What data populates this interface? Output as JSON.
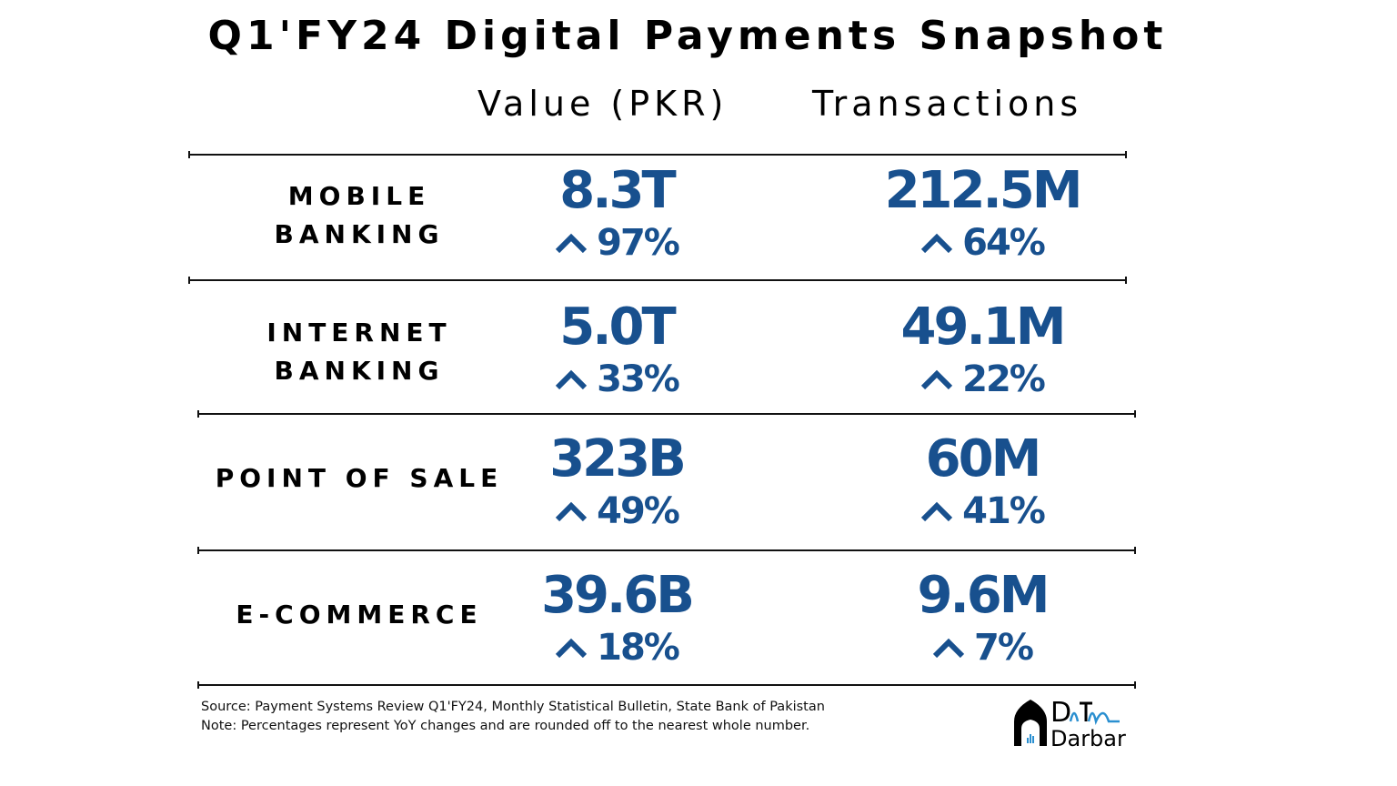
{
  "title": "Q1'FY24 Digital Payments Snapshot",
  "columns": {
    "value": "Value (PKR)",
    "transactions": "Transactions"
  },
  "rows": [
    {
      "label_line1": "MOBILE",
      "label_line2": "BANKING",
      "value": "8.3T",
      "value_change": "97%",
      "transactions": "212.5M",
      "transactions_change": "64%"
    },
    {
      "label_line1": "INTERNET",
      "label_line2": "BANKING",
      "value": "5.0T",
      "value_change": "33%",
      "transactions": "49.1M",
      "transactions_change": "22%"
    },
    {
      "label_line1": "POINT OF SALE",
      "label_line2": "",
      "value": "323B",
      "value_change": "49%",
      "transactions": "60M",
      "transactions_change": "41%"
    },
    {
      "label_line1": "E-COMMERCE",
      "label_line2": "",
      "value": "39.6B",
      "value_change": "18%",
      "transactions": "9.6M",
      "transactions_change": "7%"
    }
  ],
  "footer": {
    "source": "Source: Payment Systems Review Q1'FY24, Monthly Statistical Bulletin, State Bank of Pakistan",
    "note": "Note: Percentages represent YoY changes and are rounded off to the nearest whole number."
  },
  "logo": {
    "line1": "DaTa",
    "line2": "Darbar"
  },
  "colors": {
    "accent": "#18508e",
    "text": "#000000"
  },
  "icons": {
    "change": "chevron-up-icon"
  }
}
